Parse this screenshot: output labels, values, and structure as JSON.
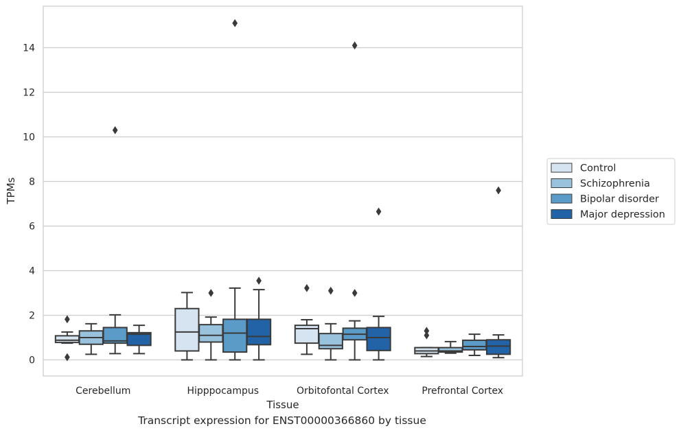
{
  "caption": "Transcript expression for ENST00000366860 by tissue",
  "chart_data": {
    "type": "box",
    "title": "",
    "xlabel": "Tissue",
    "ylabel": "TPMs",
    "ylim": [
      -0.75,
      15.8
    ],
    "yticks": [
      0,
      2,
      4,
      6,
      8,
      10,
      12,
      14
    ],
    "ytick_labels": [
      "0",
      "2",
      "4",
      "6",
      "8",
      "10",
      "12",
      "14"
    ],
    "grid": "horizontal",
    "legend_position": "right",
    "categories": [
      "Cerebellum",
      "Hipppocampus",
      "Orbitofontal Cortex",
      "Prefrontal Cortex"
    ],
    "series": [
      {
        "name": "Control",
        "color": "#d6e4f1",
        "boxes": [
          {
            "whislo": 0.75,
            "q1": 0.78,
            "med": 0.88,
            "q3": 1.08,
            "whishi": 1.25,
            "fliers": [
              1.82,
              0.12
            ]
          },
          {
            "whislo": 0.0,
            "q1": 0.4,
            "med": 1.25,
            "q3": 2.3,
            "whishi": 3.02,
            "fliers": []
          },
          {
            "whislo": 0.25,
            "q1": 0.75,
            "med": 1.4,
            "q3": 1.55,
            "whishi": 1.8,
            "fliers": [
              3.22
            ]
          },
          {
            "whislo": 0.15,
            "q1": 0.28,
            "med": 0.4,
            "q3": 0.55,
            "whishi": 0.55,
            "fliers": [
              1.3,
              1.1
            ]
          }
        ]
      },
      {
        "name": "Schizophrenia",
        "color": "#99c2dd",
        "boxes": [
          {
            "whislo": 0.25,
            "q1": 0.7,
            "med": 1.0,
            "q3": 1.3,
            "whishi": 1.62,
            "fliers": []
          },
          {
            "whislo": 0.0,
            "q1": 0.8,
            "med": 1.1,
            "q3": 1.58,
            "whishi": 1.92,
            "fliers": [
              3.0
            ]
          },
          {
            "whislo": 0.0,
            "q1": 0.5,
            "med": 0.65,
            "q3": 1.18,
            "whishi": 1.62,
            "fliers": [
              3.1
            ]
          },
          {
            "whislo": 0.3,
            "q1": 0.35,
            "med": 0.4,
            "q3": 0.55,
            "whishi": 0.82,
            "fliers": []
          }
        ]
      },
      {
        "name": "Bipolar disorder",
        "color": "#5a9bc8",
        "boxes": [
          {
            "whislo": 0.28,
            "q1": 0.75,
            "med": 0.85,
            "q3": 1.45,
            "whishi": 2.02,
            "fliers": [
              10.3
            ]
          },
          {
            "whislo": 0.0,
            "q1": 0.35,
            "med": 1.2,
            "q3": 1.82,
            "whishi": 3.22,
            "fliers": [
              15.1
            ]
          },
          {
            "whislo": 0.0,
            "q1": 0.9,
            "med": 1.15,
            "q3": 1.42,
            "whishi": 1.75,
            "fliers": [
              3.0,
              14.1
            ]
          },
          {
            "whislo": 0.2,
            "q1": 0.45,
            "med": 0.6,
            "q3": 0.88,
            "whishi": 1.15,
            "fliers": []
          }
        ]
      },
      {
        "name": "Major depression",
        "color": "#2163a6",
        "boxes": [
          {
            "whislo": 0.28,
            "q1": 0.65,
            "med": 1.15,
            "q3": 1.22,
            "whishi": 1.55,
            "fliers": []
          },
          {
            "whislo": 0.0,
            "q1": 0.68,
            "med": 1.05,
            "q3": 1.82,
            "whishi": 3.15,
            "fliers": [
              3.55
            ]
          },
          {
            "whislo": 0.0,
            "q1": 0.42,
            "med": 1.0,
            "q3": 1.45,
            "whishi": 1.95,
            "fliers": [
              6.65
            ]
          },
          {
            "whislo": 0.1,
            "q1": 0.25,
            "med": 0.62,
            "q3": 0.9,
            "whishi": 1.12,
            "fliers": [
              7.6
            ]
          }
        ]
      }
    ]
  }
}
